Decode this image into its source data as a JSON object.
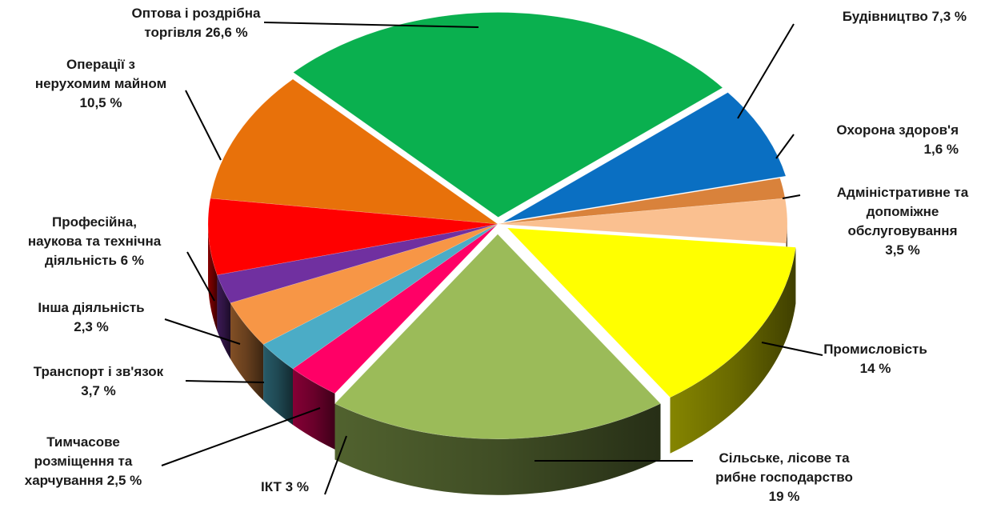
{
  "chart_data": {
    "type": "pie",
    "style": "3d-exploded",
    "slices": [
      {
        "key": "trade",
        "value": 26.6,
        "color": "#0ab04f",
        "label_lines": [
          "Оптова і роздрібна",
          "торгівля 26,6 %"
        ]
      },
      {
        "key": "construction",
        "value": 7.3,
        "color": "#0a6fc2",
        "label_lines": [
          "Будівництво 7,3 %"
        ]
      },
      {
        "key": "health",
        "value": 1.6,
        "color": "#d9823b",
        "label_lines": [
          "Охорона здоров'я",
          "1,6 %"
        ]
      },
      {
        "key": "admin",
        "value": 3.5,
        "color": "#fac090",
        "label_lines": [
          "Адміністративне та",
          "допоміжне",
          "обслуговування",
          "3,5 %"
        ]
      },
      {
        "key": "industry",
        "value": 14,
        "color": "#ffff00",
        "label_lines": [
          "Промисловість",
          "14 %"
        ]
      },
      {
        "key": "agriculture",
        "value": 19,
        "color": "#9bbb59",
        "label_lines": [
          "Сільське, лісове та",
          "рибне господарство",
          "19 %"
        ]
      },
      {
        "key": "ict",
        "value": 3,
        "color": "#ff0066",
        "label_lines": [
          "ІКТ 3 %"
        ]
      },
      {
        "key": "accommodation",
        "value": 2.5,
        "color": "#4bacc6",
        "label_lines": [
          "Тимчасове",
          "розміщення та",
          "харчування 2,5 %"
        ]
      },
      {
        "key": "transport",
        "value": 3.7,
        "color": "#f79646",
        "label_lines": [
          "Транспорт і зв'язок",
          "3,7 %"
        ]
      },
      {
        "key": "other",
        "value": 2.3,
        "color": "#7030a0",
        "label_lines": [
          "Інша діяльність",
          "2,3 %"
        ]
      },
      {
        "key": "professional",
        "value": 6,
        "color": "#ff0000",
        "label_lines": [
          "Професійна,",
          "наукова та технічна",
          "діяльність 6 %"
        ]
      },
      {
        "key": "realestate",
        "value": 10.5,
        "color": "#e8710a",
        "label_lines": [
          "Операції з",
          "нерухомим майном",
          "10,5 %"
        ]
      }
    ]
  }
}
